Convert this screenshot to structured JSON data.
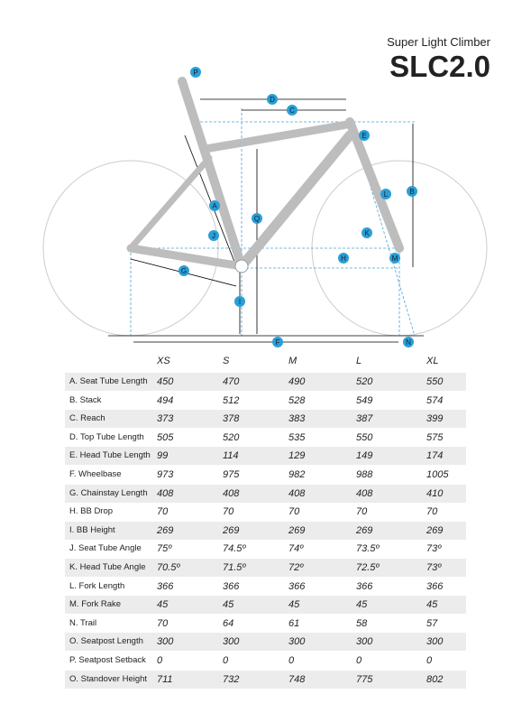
{
  "header": {
    "subtitle": "Super Light Climber",
    "title": "SLC2.0"
  },
  "diagram": {
    "labels": [
      "P",
      "D",
      "C",
      "E",
      "B",
      "Q",
      "A",
      "L",
      "J",
      "K",
      "H",
      "M",
      "G",
      "I",
      "F",
      "N"
    ]
  },
  "table": {
    "columns": [
      "XS",
      "S",
      "M",
      "L",
      "XL"
    ],
    "rows": [
      [
        "A. Seat Tube Length",
        "450",
        "470",
        "490",
        "520",
        "550"
      ],
      [
        "B. Stack",
        "494",
        "512",
        "528",
        "549",
        "574"
      ],
      [
        "C. Reach",
        "373",
        "378",
        "383",
        "387",
        "399"
      ],
      [
        "D. Top Tube Length",
        "505",
        "520",
        "535",
        "550",
        "575"
      ],
      [
        "E. Head Tube Length",
        "99",
        "114",
        "129",
        "149",
        "174"
      ],
      [
        "F. Wheelbase",
        "973",
        "975",
        "982",
        "988",
        "1005"
      ],
      [
        "G. Chainstay Length",
        "408",
        "408",
        "408",
        "408",
        "410"
      ],
      [
        "H. BB Drop",
        "70",
        "70",
        "70",
        "70",
        "70"
      ],
      [
        "I. BB Height",
        "269",
        "269",
        "269",
        "269",
        "269"
      ],
      [
        "J. Seat Tube Angle",
        "75º",
        "74.5º",
        "74º",
        "73.5º",
        "73º"
      ],
      [
        "K. Head Tube Angle",
        "70.5º",
        "71.5º",
        "72º",
        "72.5º",
        "73º"
      ],
      [
        "L. Fork Length",
        "366",
        "366",
        "366",
        "366",
        "366"
      ],
      [
        "M. Fork Rake",
        "45",
        "45",
        "45",
        "45",
        "45"
      ],
      [
        "N. Trail",
        "70",
        "64",
        "61",
        "58",
        "57"
      ],
      [
        "O. Seatpost Length",
        "300",
        "300",
        "300",
        "300",
        "300"
      ],
      [
        "P. Seatpost Setback",
        "0",
        "0",
        "0",
        "0",
        "0"
      ],
      [
        "O. Standover Height",
        "711",
        "732",
        "748",
        "775",
        "802"
      ]
    ]
  }
}
